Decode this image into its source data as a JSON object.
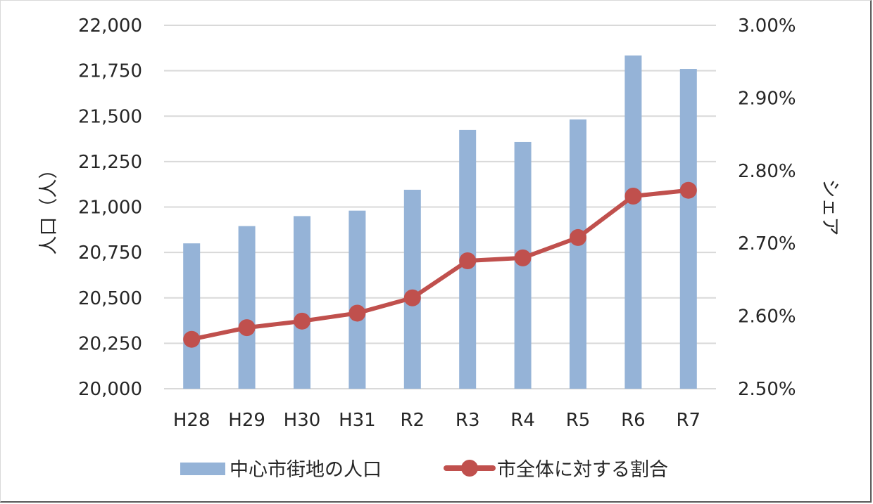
{
  "chart_data": {
    "type": "bar+line",
    "title": "",
    "categories": [
      "H28",
      "H29",
      "H30",
      "H31",
      "R2",
      "R3",
      "R4",
      "R5",
      "R6",
      "R7"
    ],
    "series": [
      {
        "name": "中心市街地の人口",
        "type": "bar",
        "axis": "left",
        "color": "#95B3D7",
        "values": [
          20800,
          20895,
          20950,
          20980,
          21095,
          21424,
          21358,
          21482,
          21834,
          21760
        ]
      },
      {
        "name": "市全体に対する割合",
        "type": "line",
        "axis": "right",
        "color": "#C0504D",
        "marker": "circle",
        "values": [
          2.568,
          2.584,
          2.593,
          2.604,
          2.625,
          2.676,
          2.68,
          2.708,
          2.765,
          2.773
        ]
      }
    ],
    "ylabel": "人口（人）",
    "y2label": "シェア",
    "xlabel": "",
    "ylim": [
      20000,
      22000
    ],
    "y2lim": [
      2.5,
      3.0
    ],
    "yticks": [
      "20,000",
      "20,250",
      "20,500",
      "20,750",
      "21,000",
      "21,250",
      "21,500",
      "21,750",
      "22,000"
    ],
    "y2ticks": [
      "2.50%",
      "2.60%",
      "2.70%",
      "2.80%",
      "2.90%",
      "3.00%"
    ],
    "grid": true,
    "legend_position": "bottom"
  },
  "axes": {
    "left_title": "人口（人）",
    "right_title": "シェア"
  },
  "legend": {
    "bar_label": "中心市街地の人口",
    "line_label": "市全体に対する割合"
  },
  "colors": {
    "bar": "#95B3D7",
    "line": "#C0504D",
    "grid": "#D9D9D9",
    "text": "#262626"
  }
}
